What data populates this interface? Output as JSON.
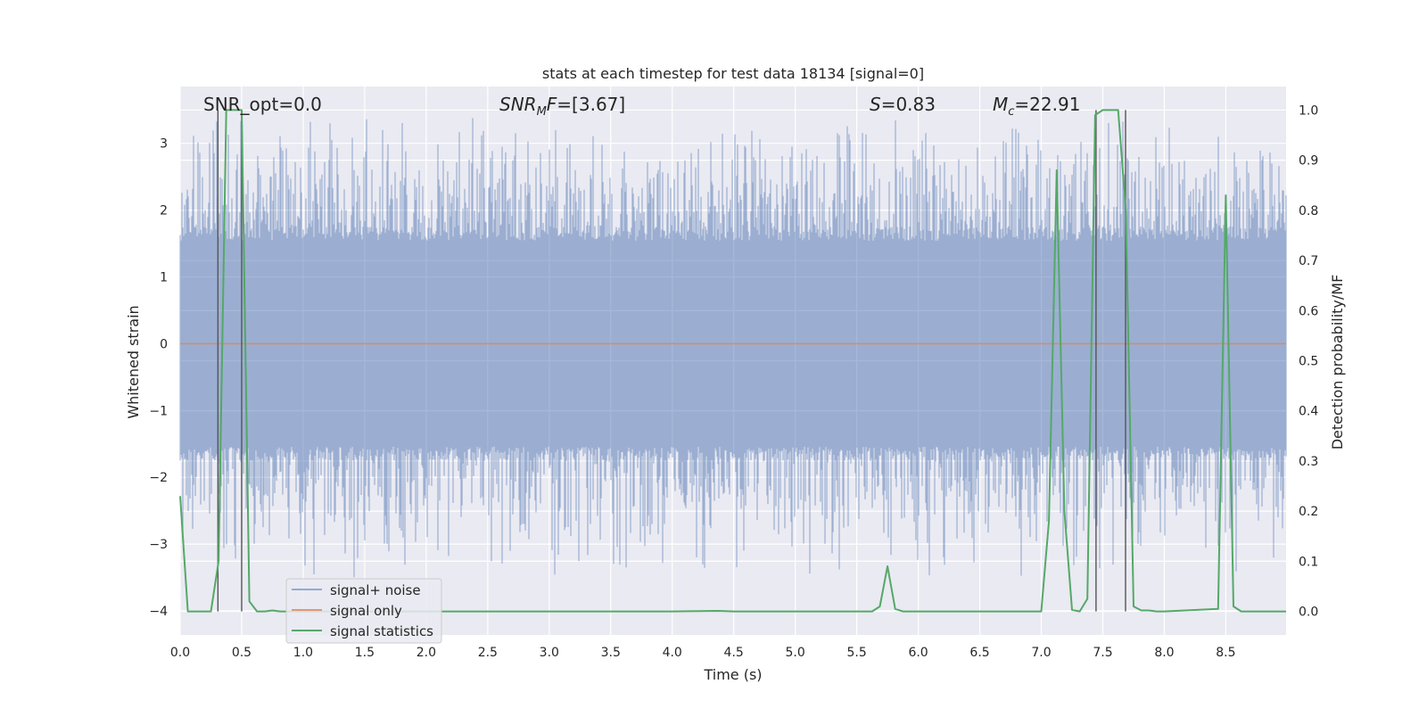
{
  "chart_data": {
    "type": "line",
    "title": "stats at each timestep for test data 18134 [signal=0]",
    "xlabel": "Time (s)",
    "ylabel": "Whitened strain",
    "y2label": "Detection probability/MF",
    "xlim": [
      0.0,
      8.99
    ],
    "ylim": [
      -4.36,
      3.85
    ],
    "y2lim": [
      -0.047,
      1.047
    ],
    "x_ticks": [
      0.0,
      0.5,
      1.0,
      1.5,
      2.0,
      2.5,
      3.0,
      3.5,
      4.0,
      4.5,
      5.0,
      5.5,
      6.0,
      6.5,
      7.0,
      7.5,
      8.0,
      8.5
    ],
    "x_tick_labels": [
      "0.0",
      "0.5",
      "1.0",
      "1.5",
      "2.0",
      "2.5",
      "3.0",
      "3.5",
      "4.0",
      "4.5",
      "5.0",
      "5.5",
      "6.0",
      "6.5",
      "7.0",
      "7.5",
      "8.0",
      "8.5"
    ],
    "y_ticks": [
      -4,
      -3,
      -2,
      -1,
      0,
      1,
      2,
      3
    ],
    "y_tick_labels": [
      "−4",
      "−3",
      "−2",
      "−1",
      "0",
      "1",
      "2",
      "3"
    ],
    "y2_ticks": [
      0.0,
      0.1,
      0.2,
      0.3,
      0.4,
      0.5,
      0.6,
      0.7,
      0.8,
      0.9,
      1.0
    ],
    "y2_tick_labels": [
      "0.0",
      "0.1",
      "0.2",
      "0.3",
      "0.4",
      "0.5",
      "0.6",
      "0.7",
      "0.8",
      "0.9",
      "1.0"
    ],
    "grid": true,
    "legend_position": "lower-left",
    "annotations": {
      "snr_opt": "SNR_opt=0.0",
      "snr_mf_prefix": "SNR",
      "snr_mf_sub": "M",
      "snr_mf_suffix": "F=[3.67]",
      "s_var": "S",
      "s_value": "=0.83",
      "mc_var": "M",
      "mc_sub": "c",
      "mc_value": "=22.91"
    },
    "series": [
      {
        "name": "signal+ noise",
        "color": "#4c72b0",
        "kind": "noise_band",
        "core_range": [
          -1.75,
          1.75
        ],
        "spike_range": [
          -3.6,
          3.5
        ],
        "sample_rate": 2048,
        "samples": 18412
      },
      {
        "name": "signal only",
        "color": "#dd8452",
        "x": [
          0.0,
          8.99
        ],
        "y": [
          0.0,
          0.0
        ]
      },
      {
        "name": "signal statistics",
        "color": "#55a868",
        "axis": "secondary",
        "x": [
          0.0,
          0.0625,
          0.125,
          0.1875,
          0.25,
          0.3125,
          0.375,
          0.4375,
          0.5,
          0.5625,
          0.625,
          0.6875,
          0.75,
          0.8125,
          0.875,
          1.0,
          1.5,
          2.0,
          2.5,
          3.0,
          3.5,
          4.0,
          4.375,
          4.5,
          5.0,
          5.5,
          5.625,
          5.6875,
          5.75,
          5.8125,
          5.875,
          6.0,
          6.5,
          7.0,
          7.0625,
          7.125,
          7.1875,
          7.25,
          7.3125,
          7.375,
          7.4375,
          7.5,
          7.5625,
          7.625,
          7.6875,
          7.75,
          7.8125,
          7.875,
          7.9375,
          8.0,
          8.4375,
          8.5,
          8.5625,
          8.625,
          8.6875,
          8.75,
          8.99
        ],
        "y": [
          0.23,
          0.0,
          0.0,
          0.0,
          0.0,
          0.1,
          1.0,
          1.0,
          1.0,
          0.02,
          0.0,
          0.0,
          0.002,
          0.0,
          0.0,
          0.0,
          0.0,
          0.0,
          0.0,
          0.0,
          0.0,
          0.0,
          0.001,
          0.0,
          0.0,
          0.0,
          0.0,
          0.01,
          0.09,
          0.005,
          0.0,
          0.0,
          0.0,
          0.0,
          0.18,
          0.88,
          0.2,
          0.003,
          0.0,
          0.025,
          0.99,
          1.0,
          1.0,
          1.0,
          0.8,
          0.01,
          0.002,
          0.002,
          0.0,
          0.0,
          0.005,
          0.83,
          0.01,
          0.0,
          0.0,
          0.0,
          0.0
        ]
      }
    ],
    "marker_lines": [
      0.307,
      0.5,
      7.445,
      7.685
    ]
  }
}
